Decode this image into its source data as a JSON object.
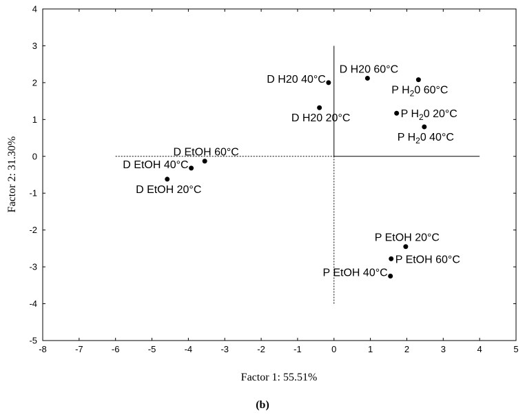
{
  "chart_data": {
    "type": "scatter",
    "xlabel": "Factor 1: 55.51%",
    "ylabel": "Factor 2: 31.30%",
    "caption": "(b)",
    "xlim": [
      -8,
      5
    ],
    "ylim": [
      -5,
      4
    ],
    "x_ticks": [
      "-8",
      "-7",
      "-6",
      "-5",
      "-4",
      "-3",
      "-2",
      "-1",
      "0",
      "1",
      "2",
      "3",
      "4",
      "5"
    ],
    "y_ticks": [
      "4",
      "3",
      "2",
      "1",
      "0",
      "-1",
      "-2",
      "-3",
      "-4",
      "-5"
    ],
    "reference_lines": {
      "horizontal": {
        "y": 0,
        "dotted_from": -6,
        "dotted_to": 0,
        "solid_from": 0,
        "solid_to": 4
      },
      "vertical": {
        "x": 0,
        "solid_from": 0,
        "solid_to": 3,
        "dotted_from": -4,
        "dotted_to": 0
      }
    },
    "points": [
      {
        "x": -0.15,
        "y": 2.0,
        "label": "D  H20 40°C",
        "pos": "left"
      },
      {
        "x": 0.92,
        "y": 2.12,
        "label": "D  H20 60°C",
        "pos": "above"
      },
      {
        "x": -0.4,
        "y": 1.32,
        "label": "D  H20 20°C",
        "pos": "below"
      },
      {
        "x": 2.32,
        "y": 2.08,
        "label": "P  H",
        "sub": "2",
        "tail": "0 60°C",
        "pos": "below"
      },
      {
        "x": 1.72,
        "y": 1.17,
        "label": "P  H",
        "sub": "2",
        "tail": "0 20°C",
        "pos": "right"
      },
      {
        "x": 2.48,
        "y": 0.8,
        "label": "P  H",
        "sub": "2",
        "tail": "0 40°C",
        "pos": "below"
      },
      {
        "x": -3.55,
        "y": -0.13,
        "label": "D  EtOH 60°C",
        "pos": "above"
      },
      {
        "x": -3.92,
        "y": -0.32,
        "label": "D  EtOH 40°C",
        "pos": "left"
      },
      {
        "x": -4.58,
        "y": -0.62,
        "label": "D  EtOH 20°C",
        "pos": "below"
      },
      {
        "x": 1.97,
        "y": -2.45,
        "label": "P  EtOH 20°C",
        "pos": "above"
      },
      {
        "x": 1.57,
        "y": -2.78,
        "label": "P  EtOH 60°C",
        "pos": "right"
      },
      {
        "x": 1.55,
        "y": -3.25,
        "label": "P  EtOH 40°C",
        "pos": "left"
      }
    ]
  }
}
